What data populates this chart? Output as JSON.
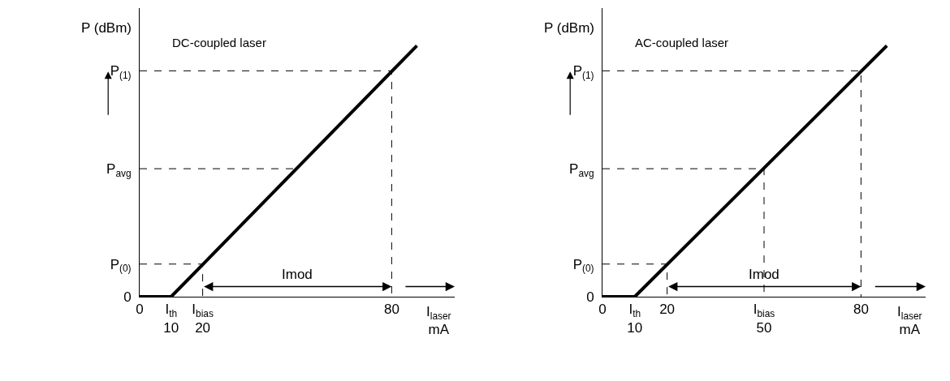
{
  "chart_data": [
    {
      "type": "line",
      "title": "DC-coupled laser",
      "ylabel": "P (dBm)",
      "xlabel": "I$_{laser}$\nmA",
      "xlim": [
        0,
        100
      ],
      "ylim": [
        0,
        1.15
      ],
      "xticks": [
        0,
        {
          "value": 10,
          "label": "I$_{th}$\n10"
        },
        {
          "value": 20,
          "label": "I$_{bias}$\n20"
        },
        80
      ],
      "yticks": [
        0,
        {
          "value": 0.13,
          "label": "P$_{(0)}$"
        },
        {
          "value": 0.51,
          "label": "P$_{avg}$"
        },
        {
          "value": 0.9,
          "label": "P$_{(1)}$"
        }
      ],
      "series": [
        {
          "color": "#000000",
          "x": [
            0,
            10,
            88
          ],
          "values": [
            0,
            0,
            1
          ]
        },
        {
          "color": "#000000",
          "line_style": "dashed",
          "x": [
            0,
            20,
            20
          ],
          "values": [
            0.13,
            0.13,
            0
          ]
        },
        {
          "color": "#000000",
          "line_style": "dashed",
          "x": [
            0,
            50
          ],
          "values": [
            0.51,
            0.51
          ]
        },
        {
          "color": "#000000",
          "line_style": "dashed",
          "x": [
            0,
            80,
            80
          ],
          "values": [
            0.9,
            0.9,
            0
          ]
        }
      ],
      "annotations": [
        "Imod"
      ],
      "grid": false,
      "marker": "none"
    },
    {
      "type": "line",
      "title": "AC-coupled laser",
      "ylabel": "P (dBm)",
      "xlabel": "I$_{laser}$\nmA",
      "xlim": [
        0,
        100
      ],
      "ylim": [
        0,
        1.15
      ],
      "xticks": [
        0,
        {
          "value": 10,
          "label": "I$_{th}$\n10"
        },
        20,
        {
          "value": 50,
          "label": "I$_{bias}$\n50"
        },
        80
      ],
      "yticks": [
        0,
        {
          "value": 0.13,
          "label": "P$_{(0)}$"
        },
        {
          "value": 0.51,
          "label": "P$_{avg}$"
        },
        {
          "value": 0.9,
          "label": "P$_{(1)}$"
        }
      ],
      "series": [
        {
          "color": "#000000",
          "x": [
            0,
            10,
            88
          ],
          "values": [
            0,
            0,
            1
          ]
        },
        {
          "color": "#000000",
          "line_style": "dashed",
          "x": [
            0,
            20,
            20
          ],
          "values": [
            0.13,
            0.13,
            0
          ]
        },
        {
          "color": "#000000",
          "line_style": "dashed",
          "x": [
            0,
            50,
            50
          ],
          "values": [
            0.51,
            0.51,
            0
          ]
        },
        {
          "color": "#000000",
          "line_style": "dashed",
          "x": [
            0,
            80,
            80
          ],
          "values": [
            0.9,
            0.9,
            0
          ]
        }
      ],
      "annotations": [
        "Imod"
      ],
      "grid": false,
      "marker": "none"
    }
  ]
}
